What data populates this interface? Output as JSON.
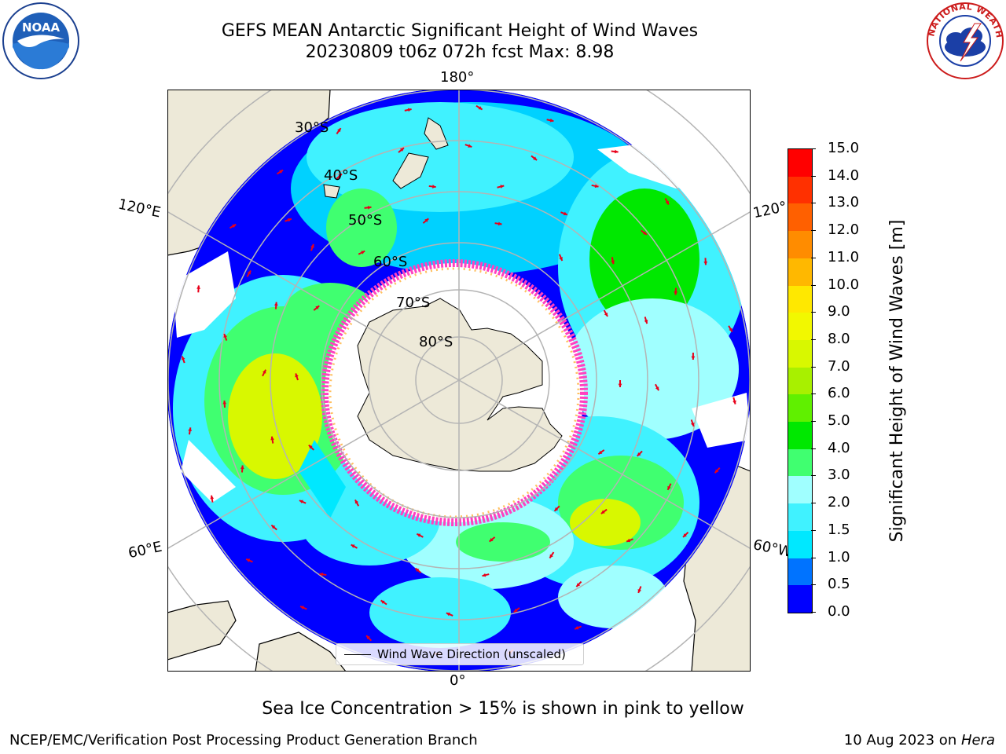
{
  "title": {
    "line1": "GEFS MEAN Antarctic Significant Height of Wind Waves",
    "line2": "20230809 t06z 072h fcst   Max: 8.98"
  },
  "map": {
    "projection": "south-polar stereographic",
    "longitude_labels": [
      "180°",
      "0°",
      "120°E",
      "120°",
      "60°E",
      "60°W"
    ],
    "latitude_labels": [
      "30°S",
      "40°S",
      "50°S",
      "60°S",
      "70°S",
      "80°S"
    ],
    "land_color": "#ede9d8",
    "grid_color": "#b4b4b4",
    "ice_colors": [
      "#ff40c0",
      "#ffc060",
      "#ffff60"
    ],
    "arrow_color": "#e8001a"
  },
  "legend": {
    "label": "Wind Wave Direction (unscaled)"
  },
  "colorbar": {
    "title": "Significant Height of Wind Waves [m]",
    "tick_labels": [
      "0.0",
      "0.5",
      "1.0",
      "1.5",
      "2.0",
      "3.0",
      "4.0",
      "5.0",
      "6.0",
      "7.0",
      "8.0",
      "9.0",
      "10.0",
      "11.0",
      "12.0",
      "13.0",
      "14.0",
      "15.0"
    ],
    "colors": [
      "#0000ff",
      "#0073ff",
      "#00e8ff",
      "#40f2ff",
      "#a0ffff",
      "#40ff70",
      "#00e800",
      "#60f000",
      "#a8f000",
      "#d8f800",
      "#f2f800",
      "#ffe800",
      "#ffb800",
      "#ff8c00",
      "#ff6000",
      "#ff3000",
      "#ff0000"
    ]
  },
  "footer": {
    "note": "Sea Ice Concentration > 15% is shown in pink to yellow",
    "left": "NCEP/EMC/Verification Post Processing Product Generation Branch",
    "right_prefix": "10 Aug 2023 on ",
    "right_machine": "Hera"
  },
  "logos": {
    "noaa_text": "NOAA",
    "nws_text": "NATIONAL WEATHER SERVICE"
  }
}
